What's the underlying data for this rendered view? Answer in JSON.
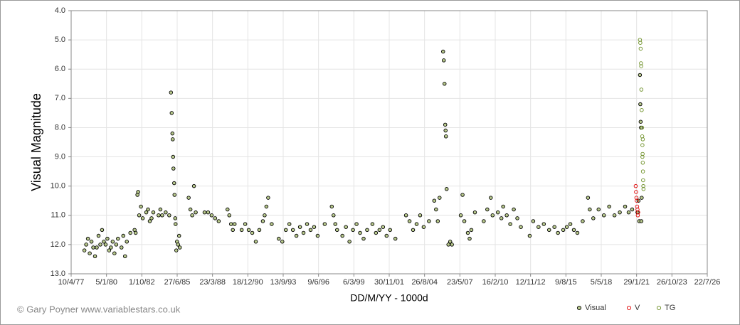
{
  "chart_data": {
    "type": "scatter",
    "xlabel": "DD/M/YY - 1000d",
    "ylabel": "Visual Magnitude",
    "credit": "© Gary Poyner www.variablestars.co.uk",
    "xlim": [
      28225,
      46225
    ],
    "xticks": [
      {
        "value": 28225,
        "label": "10/4/77"
      },
      {
        "value": 29225,
        "label": "5/1/80"
      },
      {
        "value": 30225,
        "label": "1/10/82"
      },
      {
        "value": 31225,
        "label": "27/6/85"
      },
      {
        "value": 32225,
        "label": "23/3/88"
      },
      {
        "value": 33225,
        "label": "18/12/90"
      },
      {
        "value": 34225,
        "label": "13/9/93"
      },
      {
        "value": 35225,
        "label": "9/6/96"
      },
      {
        "value": 36225,
        "label": "6/3/99"
      },
      {
        "value": 37225,
        "label": "30/11/01"
      },
      {
        "value": 38225,
        "label": "26/8/04"
      },
      {
        "value": 39225,
        "label": "23/5/07"
      },
      {
        "value": 40225,
        "label": "16/2/10"
      },
      {
        "value": 41225,
        "label": "12/11/12"
      },
      {
        "value": 42225,
        "label": "9/8/15"
      },
      {
        "value": 43225,
        "label": "5/5/18"
      },
      {
        "value": 44225,
        "label": "29/1/21"
      },
      {
        "value": 45225,
        "label": "26/10/23"
      },
      {
        "value": 46225,
        "label": "22/7/26"
      }
    ],
    "ylim": [
      4,
      13
    ],
    "y_reversed": true,
    "yticks": [
      {
        "value": 4,
        "label": "4.0"
      },
      {
        "value": 5,
        "label": "5.0"
      },
      {
        "value": 6,
        "label": "6.0"
      },
      {
        "value": 7,
        "label": "7.0"
      },
      {
        "value": 8,
        "label": "8.0"
      },
      {
        "value": 9,
        "label": "9.0"
      },
      {
        "value": 10,
        "label": "10.0"
      },
      {
        "value": 11,
        "label": "11.0"
      },
      {
        "value": 12,
        "label": "12.0"
      },
      {
        "value": 13,
        "label": "13.0"
      }
    ],
    "grid": true,
    "legend": "bottom-right",
    "series": [
      {
        "name": "Visual",
        "color": "#000000",
        "fill": "#b8c98c",
        "x": [
          28600,
          28650,
          28700,
          28750,
          28800,
          28850,
          28900,
          28950,
          29000,
          29050,
          29100,
          29150,
          29200,
          29250,
          29300,
          29350,
          29400,
          29450,
          29500,
          29550,
          29650,
          29700,
          29750,
          29800,
          29900,
          30020,
          30050,
          30100,
          30120,
          30150,
          30200,
          30250,
          30350,
          30400,
          30450,
          30500,
          30550,
          30700,
          30750,
          30800,
          30900,
          31000,
          31050,
          31070,
          31090,
          31100,
          31110,
          31120,
          31140,
          31150,
          31170,
          31180,
          31200,
          31220,
          31250,
          31280,
          31300,
          31550,
          31600,
          31650,
          31700,
          31750,
          32000,
          32100,
          32200,
          32300,
          32400,
          32650,
          32700,
          32750,
          32800,
          32850,
          33050,
          33150,
          33250,
          33350,
          33450,
          33550,
          33650,
          33700,
          33750,
          33800,
          33900,
          34100,
          34200,
          34300,
          34400,
          34500,
          34600,
          34700,
          34800,
          34900,
          35000,
          35100,
          35200,
          35400,
          35600,
          35650,
          35700,
          35750,
          35900,
          36000,
          36100,
          36200,
          36300,
          36400,
          36500,
          36600,
          36750,
          36850,
          36950,
          37050,
          37150,
          37250,
          37400,
          37700,
          37800,
          37900,
          38000,
          38100,
          38200,
          38350,
          38500,
          38550,
          38600,
          38650,
          38750,
          38770,
          38790,
          38810,
          38820,
          38830,
          38850,
          38900,
          38950,
          39000,
          39250,
          39300,
          39350,
          39450,
          39500,
          39550,
          39650,
          39900,
          40000,
          40100,
          40150,
          40300,
          40400,
          40450,
          40550,
          40650,
          40750,
          40850,
          40950,
          41200,
          41300,
          41450,
          41600,
          41750,
          41900,
          42000,
          42150,
          42250,
          42350,
          42450,
          42550,
          42700,
          42850,
          42900,
          43000,
          43150,
          43300,
          43450,
          43600,
          43750,
          43900,
          44000,
          44100,
          44250,
          44280,
          44300,
          44320,
          44330,
          44340,
          44350,
          44360,
          44370
        ],
        "values": [
          12.2,
          12.0,
          11.8,
          12.3,
          11.9,
          12.1,
          12.4,
          12.1,
          11.7,
          12.0,
          11.5,
          11.9,
          12.0,
          11.8,
          12.2,
          12.1,
          11.9,
          12.3,
          12.0,
          11.8,
          12.1,
          11.7,
          12.4,
          11.9,
          11.6,
          11.5,
          11.6,
          10.3,
          10.2,
          11.0,
          10.7,
          11.1,
          10.9,
          10.8,
          11.2,
          11.1,
          10.9,
          11.0,
          10.8,
          11.0,
          10.9,
          11.0,
          6.8,
          7.5,
          8.2,
          8.4,
          9.0,
          9.4,
          9.9,
          10.3,
          11.1,
          11.3,
          12.2,
          11.9,
          12.0,
          11.7,
          12.1,
          10.4,
          10.8,
          11.0,
          10.0,
          10.9,
          10.9,
          10.9,
          11.0,
          11.1,
          11.2,
          10.8,
          11.0,
          11.3,
          11.5,
          11.3,
          11.5,
          11.3,
          11.5,
          11.6,
          11.9,
          11.5,
          11.2,
          11.0,
          10.7,
          10.4,
          11.3,
          11.8,
          11.9,
          11.5,
          11.3,
          11.5,
          11.7,
          11.4,
          11.6,
          11.3,
          11.5,
          11.4,
          11.7,
          11.3,
          10.7,
          11.0,
          11.3,
          11.5,
          11.7,
          11.4,
          11.9,
          11.5,
          11.3,
          11.6,
          11.8,
          11.5,
          11.3,
          11.6,
          11.5,
          11.4,
          11.7,
          11.5,
          11.8,
          11.0,
          11.2,
          11.5,
          11.3,
          11.0,
          11.4,
          11.2,
          10.5,
          10.8,
          11.2,
          10.4,
          5.4,
          5.7,
          6.5,
          7.9,
          8.1,
          8.3,
          10.1,
          12.0,
          11.9,
          12.0,
          11.0,
          10.3,
          11.2,
          11.6,
          11.8,
          11.5,
          10.9,
          11.2,
          10.8,
          10.4,
          11.0,
          10.9,
          11.1,
          10.7,
          11.0,
          11.3,
          10.8,
          11.1,
          11.4,
          11.7,
          11.2,
          11.4,
          11.3,
          11.5,
          11.4,
          11.6,
          11.5,
          11.4,
          11.3,
          11.5,
          11.6,
          11.2,
          10.4,
          10.8,
          11.1,
          10.8,
          11.0,
          10.7,
          11.0,
          10.9,
          10.7,
          10.9,
          10.8,
          10.9,
          10.5,
          11.2,
          6.2,
          7.2,
          7.8,
          8.0,
          11.2,
          10.4
        ]
      },
      {
        "name": "V",
        "color": "#e00000",
        "fill": "none",
        "x": [
          44200,
          44210,
          44220,
          44230,
          44240,
          44250,
          44260,
          44270
        ],
        "values": [
          10.0,
          10.2,
          10.4,
          10.5,
          10.7,
          10.8,
          11.0,
          10.9
        ]
      },
      {
        "name": "TG",
        "color": "#6b8e23",
        "fill": "none",
        "x": [
          44320,
          44330,
          44340,
          44350,
          44355,
          44360,
          44370,
          44380,
          44385,
          44390,
          44395,
          44400,
          44405,
          44410,
          44415,
          44420,
          44400,
          44390
        ],
        "values": [
          5.0,
          5.1,
          5.3,
          5.8,
          5.9,
          6.7,
          7.4,
          8.0,
          8.3,
          8.6,
          8.9,
          9.2,
          9.5,
          9.8,
          10.0,
          10.1,
          8.4,
          9.0
        ]
      }
    ]
  }
}
